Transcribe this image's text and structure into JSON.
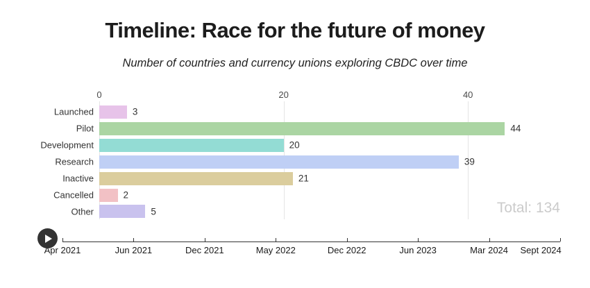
{
  "chart_data": {
    "type": "bar",
    "orientation": "horizontal",
    "title": "Timeline: Race for the future of money",
    "subtitle": "Number of countries and currency unions exploring CBDC over time",
    "categories": [
      "Launched",
      "Pilot",
      "Development",
      "Research",
      "Inactive",
      "Cancelled",
      "Other"
    ],
    "values": [
      3,
      44,
      20,
      39,
      21,
      2,
      5
    ],
    "bar_colors": [
      "#e7c3e9",
      "#abd5a3",
      "#93dcd4",
      "#bfcff5",
      "#dbcd9d",
      "#f2c1c5",
      "#c9c2ee"
    ],
    "value_axis": {
      "position": "top",
      "ticks": [
        0,
        20,
        40
      ],
      "range": [
        0,
        50
      ],
      "grid": true
    },
    "timeline_axis": {
      "labels": [
        "Apr 2021",
        "Jun 2021",
        "Dec 2021",
        "May 2022",
        "Dec 2022",
        "Jun 2023",
        "Mar 2024",
        "Sept 2024"
      ]
    },
    "total_label": "Total: 134",
    "legend": "none"
  },
  "controls": {
    "play_icon": "play-icon"
  },
  "colors": {
    "background": "#ffffff",
    "grid": "#e4e4e4",
    "axis": "#333333",
    "text": "#333333",
    "total_text": "#cbcbcb",
    "play_button": "#333333"
  }
}
